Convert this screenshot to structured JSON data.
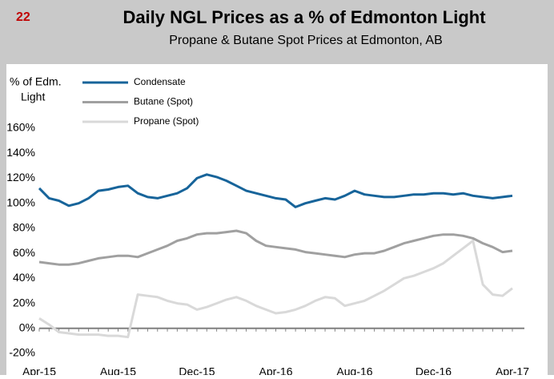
{
  "header": {
    "number": "22"
  },
  "chart_data": {
    "type": "line",
    "title": "Daily NGL Prices as a % of Edmonton Light",
    "subtitle": "Propane & Butane Spot Prices at Edmonton, AB",
    "ylabel": [
      "% of Edm.",
      "Light"
    ],
    "categories": [
      "Apr-15",
      null,
      null,
      null,
      null,
      null,
      null,
      null,
      "Aug-15",
      null,
      null,
      null,
      null,
      null,
      null,
      null,
      "Dec-15",
      null,
      null,
      null,
      null,
      null,
      null,
      null,
      "Apr-16",
      null,
      null,
      null,
      null,
      null,
      null,
      null,
      "Aug-16",
      null,
      null,
      null,
      null,
      null,
      null,
      null,
      "Dec-16",
      null,
      null,
      null,
      null,
      null,
      null,
      null,
      "Apr-17"
    ],
    "series": [
      {
        "name": "Condensate",
        "color": "#17649a",
        "values": [
          112,
          104,
          102,
          98,
          100,
          104,
          110,
          111,
          113,
          114,
          108,
          105,
          104,
          106,
          108,
          112,
          120,
          123,
          121,
          118,
          114,
          110,
          108,
          106,
          104,
          103,
          97,
          100,
          102,
          104,
          103,
          106,
          110,
          107,
          106,
          105,
          105,
          106,
          107,
          107,
          108,
          108,
          107,
          108,
          106,
          105,
          104,
          105,
          106
        ]
      },
      {
        "name": "Butane (Spot)",
        "color": "#a0a0a0",
        "values": [
          53,
          52,
          51,
          51,
          52,
          54,
          56,
          57,
          58,
          58,
          57,
          60,
          63,
          66,
          70,
          72,
          75,
          76,
          76,
          77,
          78,
          76,
          70,
          66,
          65,
          64,
          63,
          61,
          60,
          59,
          58,
          57,
          59,
          60,
          60,
          62,
          65,
          68,
          70,
          72,
          74,
          75,
          75,
          74,
          72,
          68,
          65,
          61,
          62
        ]
      },
      {
        "name": "Propane (Spot)",
        "color": "#d9d9d9",
        "values": [
          8,
          3,
          -3,
          -4,
          -5,
          -5,
          -5,
          -6,
          -6,
          -7,
          27,
          26,
          25,
          22,
          20,
          19,
          15,
          17,
          20,
          23,
          25,
          22,
          18,
          15,
          12,
          13,
          15,
          18,
          22,
          25,
          24,
          18,
          20,
          22,
          26,
          30,
          35,
          40,
          42,
          45,
          48,
          52,
          58,
          64,
          70,
          35,
          27,
          26,
          32
        ]
      }
    ],
    "ylim": [
      -20,
      160
    ],
    "yticks": [
      {
        "value": -20,
        "label": "-20%"
      },
      {
        "value": 0,
        "label": "0%"
      },
      {
        "value": 20,
        "label": "20%"
      },
      {
        "value": 40,
        "label": "40%"
      },
      {
        "value": 60,
        "label": "60%"
      },
      {
        "value": 80,
        "label": "80%"
      },
      {
        "value": 100,
        "label": "100%"
      },
      {
        "value": 120,
        "label": "120%"
      },
      {
        "value": 140,
        "label": "140%"
      },
      {
        "value": 160,
        "label": "160%"
      }
    ],
    "grid": false,
    "legend": "top-left"
  }
}
